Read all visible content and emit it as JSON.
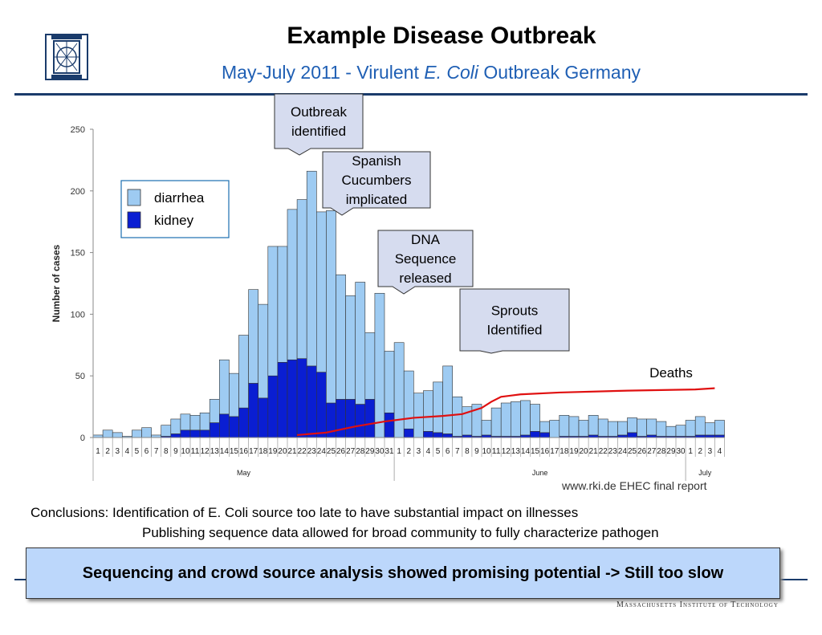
{
  "slide": {
    "title": "Example Disease Outbreak",
    "subtitle_pre": "May-July 2011 - Virulent ",
    "subtitle_em": "E. Coli",
    "subtitle_post": " Outbreak Germany",
    "source": "www.rki.de EHEC final report",
    "conclusion_1": "Conclusions: Identification of E. Coli source too late to have substantial impact on illnesses",
    "conclusion_2": "Publishing sequence data allowed for broad community to fully characterize pathogen",
    "banner": "Sequencing and crowd source analysis showed promising potential -> Still too slow",
    "footer_org": "Massachusetts Institute of Technology",
    "accent_color": "#1a3b6b",
    "logo_icon": "mit-logo-icon"
  },
  "chart_data": {
    "type": "bar",
    "stacked": true,
    "ylabel": "Number of cases",
    "ylim": [
      0,
      250
    ],
    "yticks": [
      0,
      50,
      100,
      150,
      200,
      250
    ],
    "categories": [
      "1",
      "2",
      "3",
      "4",
      "5",
      "6",
      "7",
      "8",
      "9",
      "10",
      "11",
      "12",
      "13",
      "14",
      "15",
      "16",
      "17",
      "18",
      "19",
      "20",
      "21",
      "22",
      "23",
      "24",
      "25",
      "26",
      "27",
      "28",
      "29",
      "30",
      "31",
      "1",
      "2",
      "3",
      "4",
      "5",
      "6",
      "7",
      "8",
      "9",
      "10",
      "11",
      "12",
      "13",
      "14",
      "15",
      "16",
      "17",
      "18",
      "19",
      "20",
      "21",
      "22",
      "23",
      "24",
      "25",
      "26",
      "27",
      "28",
      "29",
      "30",
      "1",
      "2",
      "3",
      "4"
    ],
    "months": [
      {
        "label": "May",
        "start": 0,
        "end": 30
      },
      {
        "label": "June",
        "start": 31,
        "end": 60
      },
      {
        "label": "July",
        "start": 61,
        "end": 64
      }
    ],
    "series": [
      {
        "name": "kidney",
        "color": "#0a1ed2",
        "values": [
          0,
          0,
          0,
          0,
          0,
          0,
          0,
          1,
          3,
          6,
          6,
          6,
          12,
          19,
          17,
          24,
          44,
          32,
          50,
          61,
          63,
          64,
          58,
          53,
          28,
          31,
          31,
          27,
          31,
          0,
          20,
          0,
          7,
          0,
          5,
          4,
          3,
          1,
          2,
          1,
          2,
          1,
          1,
          1,
          2,
          5,
          4,
          0,
          1,
          1,
          1,
          2,
          1,
          1,
          2,
          4,
          1,
          2,
          1,
          1,
          1,
          1,
          2,
          2,
          2
        ]
      },
      {
        "name": "diarrhea",
        "color": "#9ecbf2",
        "values": [
          2,
          6,
          4,
          1,
          6,
          8,
          2,
          9,
          12,
          13,
          12,
          14,
          19,
          44,
          35,
          59,
          76,
          76,
          105,
          94,
          122,
          129,
          158,
          130,
          156,
          101,
          84,
          99,
          54,
          117,
          50,
          77,
          47,
          36,
          33,
          41,
          55,
          32,
          23,
          26,
          12,
          23,
          27,
          28,
          28,
          22,
          9,
          14,
          17,
          16,
          13,
          16,
          14,
          12,
          11,
          12,
          14,
          13,
          12,
          8,
          9,
          13,
          15,
          10,
          12
        ]
      }
    ],
    "deaths_label": "Deaths",
    "deaths_color": "#e01010",
    "deaths_curve": [
      {
        "x": 21,
        "y": 2
      },
      {
        "x": 24,
        "y": 4
      },
      {
        "x": 27,
        "y": 9
      },
      {
        "x": 30,
        "y": 13
      },
      {
        "x": 33,
        "y": 16
      },
      {
        "x": 36,
        "y": 17.5
      },
      {
        "x": 38,
        "y": 19
      },
      {
        "x": 40,
        "y": 24
      },
      {
        "x": 41,
        "y": 29
      },
      {
        "x": 42,
        "y": 33
      },
      {
        "x": 44,
        "y": 35
      },
      {
        "x": 48,
        "y": 36.5
      },
      {
        "x": 55,
        "y": 38
      },
      {
        "x": 62,
        "y": 39
      },
      {
        "x": 64,
        "y": 40
      }
    ],
    "legend": [
      "diarrhea",
      "kidney"
    ],
    "legend_position": "top-left",
    "annotations": [
      {
        "text": [
          "Outbreak",
          "identified"
        ],
        "x": 21
      },
      {
        "text": [
          "Spanish",
          "Cucumbers",
          "implicated"
        ],
        "x": 25.5
      },
      {
        "text": [
          "DNA",
          "Sequence",
          "released"
        ],
        "x": 32
      },
      {
        "text": [
          "Sprouts",
          "Identified"
        ],
        "x": 40
      }
    ]
  }
}
